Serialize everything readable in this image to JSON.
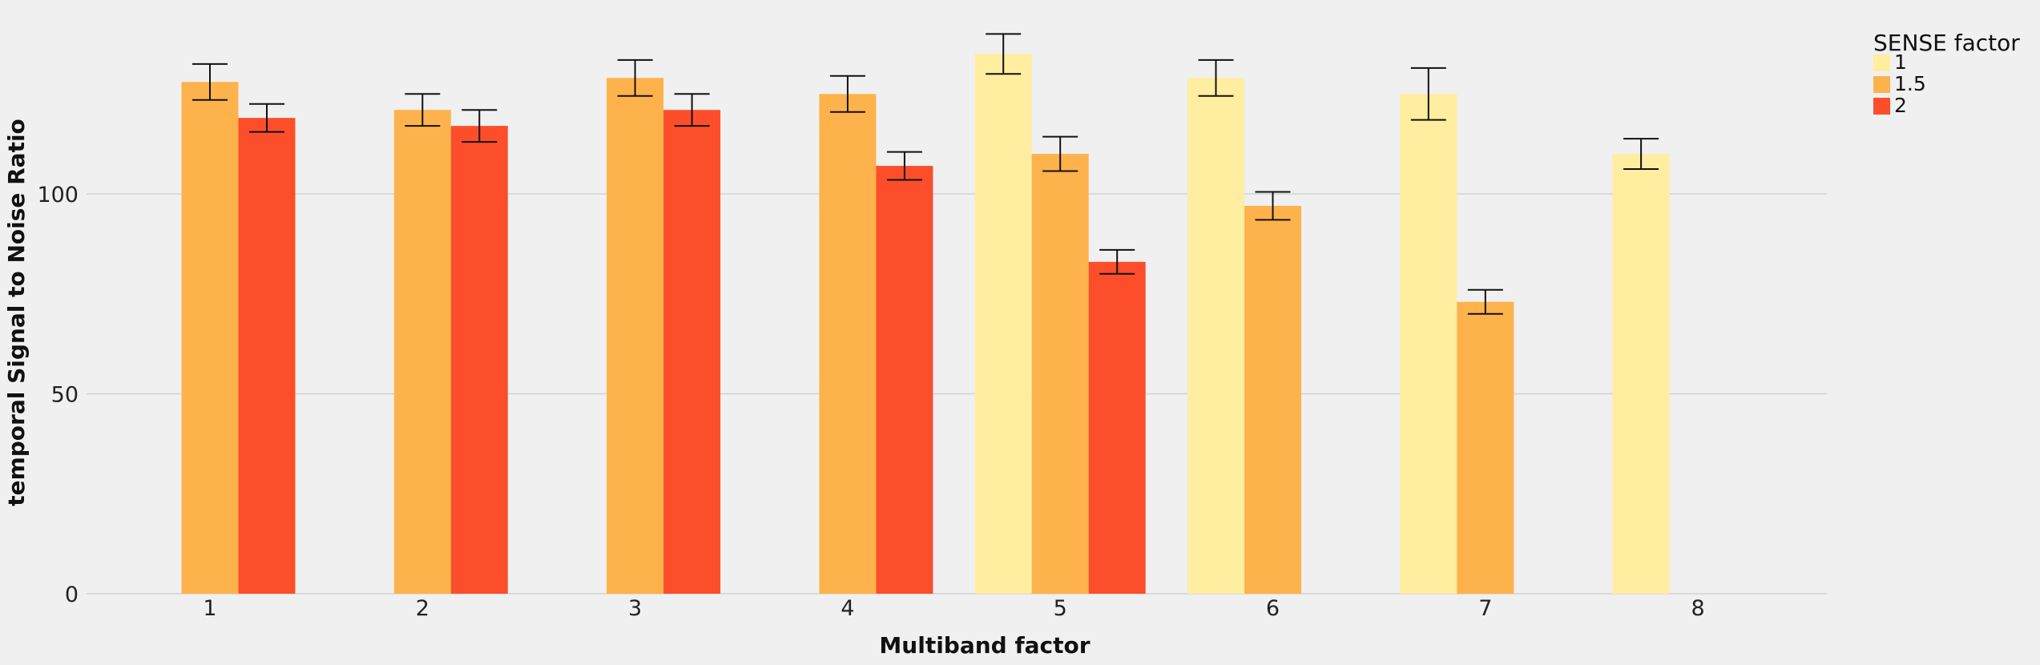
{
  "chart_data": {
    "type": "bar",
    "title": "",
    "xlabel": "Multiband factor",
    "ylabel": "temporal Signal to Noise Ratio",
    "categories": [
      "1",
      "2",
      "3",
      "4",
      "5",
      "6",
      "7",
      "8"
    ],
    "ylim": [
      0,
      140
    ],
    "yticks": [
      0,
      50,
      100
    ],
    "grid": true,
    "legend": {
      "title": "SENSE factor",
      "position": "outside-top-right"
    },
    "series": [
      {
        "name": "1",
        "color": "#ffeda0",
        "values": [
          null,
          null,
          null,
          null,
          135,
          129,
          125,
          110
        ],
        "errors": [
          null,
          null,
          null,
          null,
          5.0,
          4.5,
          6.5,
          3.8
        ]
      },
      {
        "name": "1.5",
        "color": "#feb24c",
        "values": [
          128,
          121,
          129,
          125,
          110,
          97,
          73,
          null
        ],
        "errors": [
          4.5,
          4.0,
          4.5,
          4.5,
          4.3,
          3.5,
          3.0,
          null
        ]
      },
      {
        "name": "2",
        "color": "#fc4e2a",
        "values": [
          119,
          117,
          121,
          107,
          83,
          null,
          null,
          null
        ],
        "errors": [
          3.5,
          4.0,
          4.0,
          3.5,
          3.0,
          null,
          null,
          null
        ]
      }
    ]
  }
}
